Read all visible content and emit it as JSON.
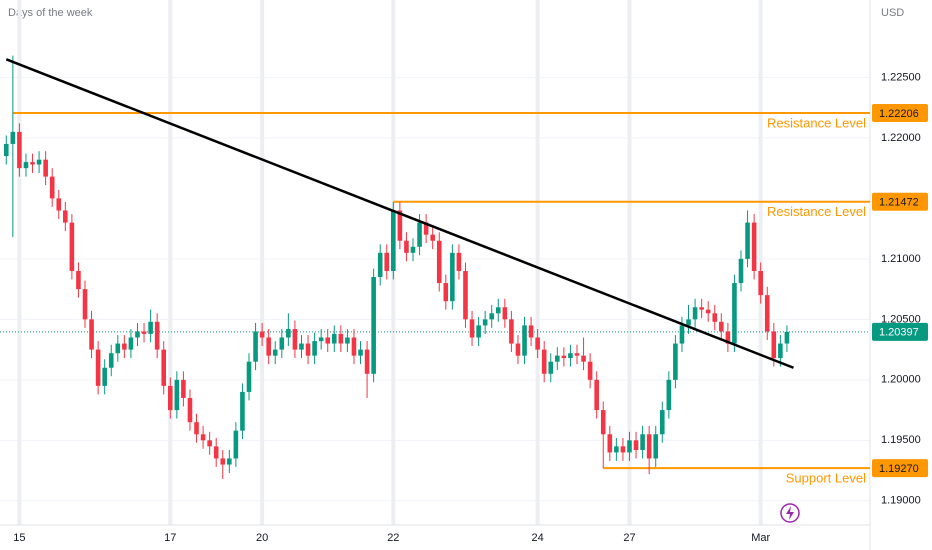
{
  "chart_data": {
    "type": "candlestick",
    "title": "Days of the week",
    "currency": "USD",
    "up_color": "#089981",
    "down_color": "#f23645",
    "categories": [
      null,
      null,
      "15",
      null,
      null,
      null,
      null,
      null,
      null,
      null,
      null,
      null,
      null,
      null,
      null,
      null,
      null,
      null,
      null,
      null,
      null,
      null,
      null,
      null,
      null,
      "17",
      null,
      null,
      null,
      null,
      null,
      null,
      null,
      null,
      null,
      null,
      null,
      null,
      null,
      "20",
      null,
      null,
      null,
      null,
      null,
      null,
      null,
      null,
      null,
      null,
      null,
      null,
      null,
      null,
      null,
      null,
      null,
      null,
      null,
      "22",
      null,
      null,
      null,
      null,
      null,
      null,
      null,
      null,
      null,
      null,
      null,
      null,
      null,
      null,
      null,
      null,
      null,
      null,
      null,
      null,
      null,
      "24",
      null,
      null,
      null,
      null,
      null,
      null,
      null,
      null,
      null,
      null,
      null,
      null,
      null,
      "27",
      null,
      null,
      null,
      null,
      null,
      null,
      null,
      null,
      null,
      null,
      null,
      null,
      null,
      null,
      null,
      null,
      null,
      null,
      null,
      "Mar",
      null,
      null,
      null,
      null
    ],
    "open": [
      1.2185,
      1.2195,
      1.2205,
      1.2175,
      1.218,
      1.2178,
      1.2182,
      1.2168,
      1.215,
      1.214,
      1.213,
      1.209,
      1.2075,
      1.205,
      1.2025,
      1.1995,
      1.201,
      1.2022,
      1.203,
      1.2025,
      1.2035,
      1.204,
      1.2038,
      1.2048,
      1.2025,
      1.1995,
      1.1975,
      1.2,
      1.1985,
      1.1965,
      1.1955,
      1.195,
      1.1945,
      1.1935,
      1.193,
      1.1935,
      1.1958,
      1.199,
      1.2015,
      1.204,
      1.2035,
      1.202,
      1.2025,
      1.2035,
      1.2042,
      1.2025,
      1.203,
      1.202,
      1.2032,
      1.2035,
      1.203,
      1.2038,
      1.203,
      1.2035,
      1.202,
      1.2025,
      1.2005,
      1.2085,
      1.2105,
      1.209,
      1.214,
      1.2115,
      1.2105,
      1.211,
      1.213,
      1.212,
      1.2115,
      1.208,
      1.2065,
      1.2105,
      1.209,
      1.205,
      1.2035,
      1.2045,
      1.205,
      1.2055,
      1.206,
      1.205,
      1.203,
      1.202,
      1.2045,
      1.2035,
      1.2025,
      1.2005,
      1.2015,
      1.202,
      1.2018,
      1.2022,
      1.202,
      1.2015,
      1.2,
      1.1975,
      1.1955,
      1.194,
      1.1945,
      1.194,
      1.195,
      1.1942,
      1.1955,
      1.1935,
      1.1955,
      1.1975,
      1.2,
      1.203,
      1.2045,
      1.205,
      1.206,
      1.2058,
      1.2055,
      1.2048,
      1.204,
      1.203,
      1.208,
      1.21,
      1.213,
      1.209,
      1.207,
      1.204,
      1.2018,
      1.203
    ],
    "high": [
      1.2202,
      1.2268,
      1.2212,
      1.2187,
      1.2187,
      1.2189,
      1.2189,
      1.2175,
      1.2157,
      1.2147,
      1.2137,
      1.2097,
      1.2082,
      1.2057,
      1.2032,
      1.2017,
      1.2029,
      1.2037,
      1.2037,
      1.2042,
      1.2047,
      1.2047,
      1.2058,
      1.2055,
      1.2032,
      1.2002,
      1.2007,
      1.2007,
      1.1992,
      1.1972,
      1.1962,
      1.1957,
      1.1952,
      1.1942,
      1.1942,
      1.1965,
      1.1997,
      1.2022,
      1.2047,
      1.2047,
      1.2042,
      1.2032,
      1.2042,
      1.2055,
      1.2049,
      1.2037,
      1.2037,
      1.2039,
      1.2042,
      1.2042,
      1.2045,
      1.2045,
      1.2042,
      1.2042,
      1.2032,
      1.2032,
      1.2092,
      1.2112,
      1.2112,
      1.2147,
      1.2147,
      1.2122,
      1.2117,
      1.2137,
      1.2137,
      1.2127,
      1.2122,
      1.2087,
      1.2112,
      1.2112,
      1.2097,
      1.2057,
      1.2052,
      1.2057,
      1.2062,
      1.2067,
      1.2067,
      1.2057,
      1.2037,
      1.2052,
      1.2052,
      1.2042,
      1.2032,
      1.2022,
      1.2027,
      1.2027,
      1.2029,
      1.2029,
      1.2035,
      1.2022,
      1.2007,
      1.1982,
      1.1962,
      1.1952,
      1.1952,
      1.1957,
      1.1957,
      1.1962,
      1.1962,
      1.1962,
      1.1982,
      1.2007,
      1.2037,
      1.2052,
      1.2062,
      1.2067,
      1.2067,
      1.2065,
      1.2062,
      1.2055,
      1.2047,
      1.2087,
      1.2107,
      1.214,
      1.2137,
      1.2097,
      1.2077,
      1.2047,
      1.2037,
      1.2045
    ],
    "low": [
      1.2178,
      1.2118,
      1.2168,
      1.2168,
      1.2171,
      1.2171,
      1.2161,
      1.2143,
      1.2133,
      1.2123,
      1.2083,
      1.2068,
      1.2043,
      1.2018,
      1.1988,
      1.1988,
      1.2003,
      1.2015,
      1.2018,
      1.2018,
      1.2028,
      1.2031,
      1.2031,
      1.2018,
      1.1988,
      1.1968,
      1.1968,
      1.1978,
      1.1958,
      1.1948,
      1.1943,
      1.1938,
      1.1928,
      1.1918,
      1.1923,
      1.1928,
      1.1951,
      1.1983,
      1.2008,
      1.2028,
      1.2013,
      1.2013,
      1.2018,
      1.2028,
      1.2018,
      1.2018,
      1.2013,
      1.2013,
      1.2025,
      1.2023,
      1.2023,
      1.2023,
      1.2023,
      1.2013,
      1.2013,
      1.1985,
      1.1998,
      1.2078,
      1.2083,
      1.2083,
      1.2108,
      1.2098,
      1.2098,
      1.2103,
      1.2113,
      1.2108,
      1.2073,
      1.2058,
      1.2058,
      1.2083,
      1.2043,
      1.2028,
      1.2028,
      1.2038,
      1.2043,
      1.2048,
      1.2043,
      1.2023,
      1.2013,
      1.2013,
      1.2028,
      1.2018,
      1.1998,
      1.1998,
      1.2008,
      1.2011,
      1.2011,
      1.2013,
      1.2008,
      1.1993,
      1.1968,
      1.1927,
      1.1933,
      1.1933,
      1.1933,
      1.1933,
      1.1935,
      1.1935,
      1.1922,
      1.1928,
      1.1948,
      1.1968,
      1.1993,
      1.2023,
      1.2038,
      1.2043,
      1.2051,
      1.2048,
      1.2041,
      1.2033,
      1.2023,
      1.2023,
      1.2073,
      1.2093,
      1.2083,
      1.2063,
      1.2033,
      1.2011,
      1.2011,
      1.2023
    ],
    "close": [
      1.2195,
      1.2205,
      1.2175,
      1.218,
      1.2178,
      1.2182,
      1.2168,
      1.215,
      1.214,
      1.213,
      1.209,
      1.2075,
      1.205,
      1.2025,
      1.1995,
      1.201,
      1.2022,
      1.203,
      1.2025,
      1.2035,
      1.204,
      1.2038,
      1.2048,
      1.2025,
      1.1995,
      1.1975,
      1.2,
      1.1985,
      1.1965,
      1.1955,
      1.195,
      1.1945,
      1.1935,
      1.193,
      1.1935,
      1.1958,
      1.199,
      1.2015,
      1.204,
      1.2035,
      1.202,
      1.2025,
      1.2035,
      1.2042,
      1.2025,
      1.203,
      1.202,
      1.2032,
      1.2035,
      1.203,
      1.2038,
      1.203,
      1.2035,
      1.202,
      1.2025,
      1.2005,
      1.2085,
      1.2105,
      1.209,
      1.214,
      1.2115,
      1.2105,
      1.211,
      1.213,
      1.212,
      1.2115,
      1.208,
      1.2065,
      1.2105,
      1.209,
      1.205,
      1.2035,
      1.2045,
      1.205,
      1.2055,
      1.206,
      1.205,
      1.203,
      1.202,
      1.2045,
      1.2035,
      1.2025,
      1.2005,
      1.2015,
      1.202,
      1.2018,
      1.2022,
      1.202,
      1.2015,
      1.2,
      1.1975,
      1.1955,
      1.194,
      1.1945,
      1.194,
      1.195,
      1.1942,
      1.1955,
      1.1935,
      1.1955,
      1.1975,
      1.2,
      1.203,
      1.2045,
      1.205,
      1.206,
      1.2058,
      1.2055,
      1.2048,
      1.204,
      1.203,
      1.208,
      1.21,
      1.213,
      1.209,
      1.207,
      1.204,
      1.2018,
      1.203,
      1.20397
    ],
    "ylim": [
      1.188,
      1.2314
    ],
    "yticks": [
      {
        "value": 1.19,
        "label": "1.19000"
      },
      {
        "value": 1.195,
        "label": "1.19500"
      },
      {
        "value": 1.2,
        "label": "1.20000"
      },
      {
        "value": 1.205,
        "label": "1.20500"
      },
      {
        "value": 1.21,
        "label": "1.21000"
      },
      {
        "value": 1.22,
        "label": "1.22000"
      },
      {
        "value": 1.225,
        "label": "1.22500"
      }
    ],
    "grid": true,
    "trendline": {
      "color": "#000000",
      "from": [
        0,
        1.2265
      ],
      "to": [
        120,
        1.201
      ]
    },
    "levels": [
      {
        "value": 1.22206,
        "value_label": "1.22206",
        "start": 1,
        "text": "Resistance Level",
        "color": "#ff9800"
      },
      {
        "value": 1.21472,
        "value_label": "1.21472",
        "start": 59,
        "text": "Resistance Level",
        "color": "#ff9800"
      },
      {
        "value": 1.1927,
        "value_label": "1.19270",
        "start": 91,
        "text": "Support Level",
        "color": "#ff9800"
      }
    ],
    "last_price": {
      "value": 1.20397,
      "value_label": "1.20397",
      "color": "#089981"
    }
  }
}
